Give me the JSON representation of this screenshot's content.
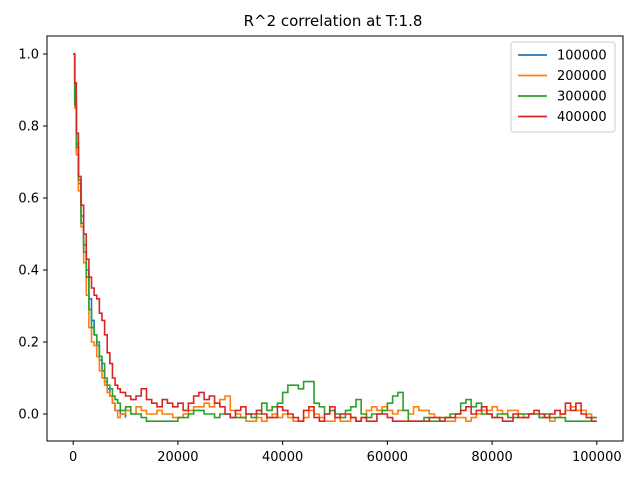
{
  "chart_data": {
    "type": "line",
    "title": "R^2 correlation at T:1.8",
    "xlabel": "",
    "ylabel": "",
    "xlim": [
      -5000,
      105000
    ],
    "ylim": [
      -0.075,
      1.05
    ],
    "xticks": [
      0,
      20000,
      40000,
      60000,
      80000,
      100000
    ],
    "xtick_labels": [
      "0",
      "20000",
      "40000",
      "60000",
      "80000",
      "100000"
    ],
    "yticks": [
      0.0,
      0.2,
      0.4,
      0.6,
      0.8,
      1.0
    ],
    "ytick_labels": [
      "0.0",
      "0.2",
      "0.4",
      "0.6",
      "0.8",
      "1.0"
    ],
    "grid": false,
    "legend_position": "top-right",
    "series": [
      {
        "name": "100000",
        "color": "#1f77b4",
        "x": [
          0,
          300,
          600,
          1000,
          1500,
          2000,
          2500,
          3000,
          3500,
          4000,
          4500,
          5000,
          5500,
          6000,
          6500,
          7000,
          7500,
          8000,
          9000,
          10000
        ],
        "y": [
          1.0,
          0.88,
          0.75,
          0.64,
          0.55,
          0.47,
          0.4,
          0.32,
          0.26,
          0.22,
          0.19,
          0.15,
          0.12,
          0.09,
          0.07,
          0.05,
          0.03,
          0.01,
          0.0,
          -0.01
        ]
      },
      {
        "name": "200000",
        "color": "#ff7f0e",
        "x": [
          0,
          300,
          600,
          1000,
          1500,
          2000,
          2500,
          3000,
          3500,
          4000,
          4500,
          5000,
          5500,
          6000,
          6500,
          7000,
          7500,
          8000,
          8500,
          9000,
          10000,
          11000,
          12000,
          13000,
          14000,
          15000,
          16000,
          17000,
          18000,
          19000,
          20000,
          21000,
          22000,
          23000,
          24000,
          25000,
          26000,
          27000,
          28000,
          29000,
          30000,
          31000,
          32000,
          33000,
          34000,
          35000,
          36000,
          37000,
          38000,
          39000,
          40000,
          41000,
          42000,
          43000,
          44000,
          45000,
          46000,
          47000,
          48000,
          49000,
          50000,
          51000,
          52000,
          53000,
          54000,
          55000,
          56000,
          57000,
          58000,
          59000,
          60000,
          61000,
          62000,
          63000,
          64000,
          65000,
          66000,
          67000,
          68000,
          69000,
          70000,
          71000,
          72000,
          73000,
          74000,
          75000,
          76000,
          77000,
          78000,
          79000,
          80000,
          81000,
          82000,
          83000,
          84000,
          85000,
          86000,
          87000,
          88000,
          89000,
          90000,
          91000,
          92000,
          93000,
          94000,
          95000,
          96000,
          97000,
          98000,
          99000,
          100000
        ],
        "y": [
          1.0,
          0.85,
          0.72,
          0.62,
          0.52,
          0.42,
          0.33,
          0.24,
          0.2,
          0.19,
          0.16,
          0.12,
          0.1,
          0.08,
          0.06,
          0.05,
          0.03,
          0.01,
          -0.01,
          0.0,
          0.01,
          0.0,
          0.02,
          0.01,
          0.0,
          0.0,
          0.01,
          0.0,
          0.0,
          -0.01,
          -0.01,
          0.0,
          0.01,
          0.02,
          0.02,
          0.03,
          0.02,
          0.03,
          0.04,
          0.05,
          0.01,
          0.0,
          -0.01,
          -0.02,
          -0.02,
          -0.01,
          -0.02,
          -0.01,
          0.0,
          -0.01,
          0.0,
          -0.01,
          -0.02,
          -0.02,
          -0.01,
          0.01,
          0.0,
          -0.01,
          -0.02,
          -0.02,
          -0.01,
          -0.02,
          -0.02,
          -0.01,
          -0.02,
          -0.01,
          0.01,
          0.02,
          0.01,
          0.02,
          0.01,
          0.0,
          0.01,
          0.01,
          0.0,
          0.02,
          0.01,
          0.01,
          0.0,
          -0.01,
          -0.02,
          -0.02,
          -0.02,
          -0.01,
          -0.01,
          -0.02,
          -0.01,
          0.0,
          0.01,
          0.01,
          0.02,
          0.01,
          0.0,
          0.01,
          0.01,
          0.0,
          -0.01,
          0.0,
          0.0,
          -0.01,
          -0.01,
          -0.02,
          -0.01,
          0.0,
          0.01,
          0.02,
          0.01,
          0.01,
          0.0,
          -0.01,
          -0.01
        ]
      },
      {
        "name": "300000",
        "color": "#2ca02c",
        "x": [
          0,
          300,
          600,
          1000,
          1500,
          2000,
          2500,
          3000,
          3500,
          4000,
          4500,
          5000,
          5500,
          6000,
          6500,
          7000,
          7500,
          8000,
          8500,
          9000,
          10000,
          11000,
          12000,
          13000,
          14000,
          15000,
          16000,
          17000,
          18000,
          19000,
          20000,
          21000,
          22000,
          23000,
          24000,
          25000,
          26000,
          27000,
          28000,
          29000,
          30000,
          31000,
          32000,
          33000,
          34000,
          35000,
          36000,
          37000,
          38000,
          39000,
          40000,
          41000,
          42000,
          43000,
          44000,
          45000,
          46000,
          47000,
          48000,
          49000,
          50000,
          51000,
          52000,
          53000,
          54000,
          55000,
          56000,
          57000,
          58000,
          59000,
          60000,
          61000,
          62000,
          63000,
          64000,
          65000,
          66000,
          67000,
          68000,
          69000,
          70000,
          71000,
          72000,
          73000,
          74000,
          75000,
          76000,
          77000,
          78000,
          79000,
          80000,
          81000,
          82000,
          83000,
          84000,
          85000,
          86000,
          87000,
          88000,
          89000,
          90000,
          91000,
          92000,
          93000,
          94000,
          95000,
          96000,
          97000,
          98000,
          99000,
          100000
        ],
        "y": [
          1.0,
          0.86,
          0.74,
          0.65,
          0.53,
          0.45,
          0.38,
          0.29,
          0.24,
          0.22,
          0.2,
          0.16,
          0.14,
          0.1,
          0.08,
          0.07,
          0.05,
          0.04,
          0.03,
          0.01,
          0.02,
          0.0,
          0.0,
          -0.01,
          -0.02,
          -0.02,
          -0.02,
          -0.02,
          -0.02,
          -0.02,
          -0.01,
          -0.01,
          0.0,
          0.01,
          0.01,
          0.0,
          0.0,
          -0.01,
          0.0,
          0.0,
          -0.01,
          -0.01,
          -0.01,
          0.0,
          -0.01,
          0.0,
          0.03,
          0.01,
          0.02,
          0.03,
          0.06,
          0.08,
          0.08,
          0.07,
          0.09,
          0.09,
          0.03,
          0.02,
          0.0,
          0.01,
          0.0,
          -0.01,
          0.01,
          0.02,
          0.04,
          0.0,
          -0.01,
          0.0,
          0.0,
          0.01,
          0.03,
          0.05,
          0.06,
          0.01,
          -0.02,
          -0.02,
          -0.02,
          -0.01,
          -0.02,
          -0.02,
          -0.01,
          -0.01,
          0.0,
          0.0,
          0.03,
          0.04,
          0.02,
          0.03,
          0.0,
          0.0,
          -0.01,
          0.0,
          0.0,
          -0.01,
          -0.01,
          0.0,
          0.0,
          0.0,
          0.0,
          -0.01,
          0.0,
          -0.01,
          -0.01,
          -0.01,
          -0.02,
          -0.02,
          -0.02,
          -0.02,
          -0.02,
          -0.01,
          -0.01
        ]
      },
      {
        "name": "400000",
        "color": "#d62728",
        "x": [
          0,
          300,
          600,
          1000,
          1500,
          2000,
          2500,
          3000,
          3500,
          4000,
          4500,
          5000,
          5500,
          6000,
          6500,
          7000,
          7500,
          8000,
          8500,
          9000,
          10000,
          11000,
          12000,
          13000,
          14000,
          15000,
          16000,
          17000,
          18000,
          19000,
          20000,
          21000,
          22000,
          23000,
          24000,
          25000,
          26000,
          27000,
          28000,
          29000,
          30000,
          31000,
          32000,
          33000,
          34000,
          35000,
          36000,
          37000,
          38000,
          39000,
          40000,
          41000,
          42000,
          43000,
          44000,
          45000,
          46000,
          47000,
          48000,
          49000,
          50000,
          51000,
          52000,
          53000,
          54000,
          55000,
          56000,
          57000,
          58000,
          59000,
          60000,
          61000,
          62000,
          63000,
          64000,
          65000,
          66000,
          67000,
          68000,
          69000,
          70000,
          71000,
          72000,
          73000,
          74000,
          75000,
          76000,
          77000,
          78000,
          79000,
          80000,
          81000,
          82000,
          83000,
          84000,
          85000,
          86000,
          87000,
          88000,
          89000,
          90000,
          91000,
          92000,
          93000,
          94000,
          95000,
          96000,
          97000,
          98000,
          99000,
          100000
        ],
        "y": [
          1.0,
          0.92,
          0.78,
          0.66,
          0.58,
          0.5,
          0.43,
          0.38,
          0.35,
          0.33,
          0.32,
          0.28,
          0.26,
          0.22,
          0.17,
          0.14,
          0.1,
          0.08,
          0.07,
          0.06,
          0.05,
          0.04,
          0.05,
          0.07,
          0.04,
          0.03,
          0.02,
          0.04,
          0.03,
          0.02,
          0.03,
          0.01,
          0.03,
          0.05,
          0.06,
          0.04,
          0.05,
          0.03,
          0.02,
          0.0,
          -0.01,
          0.01,
          0.02,
          0.0,
          0.0,
          0.01,
          0.0,
          -0.01,
          -0.01,
          0.02,
          0.01,
          0.0,
          -0.01,
          -0.02,
          0.01,
          0.02,
          -0.01,
          -0.02,
          0.0,
          0.02,
          -0.01,
          0.0,
          0.0,
          -0.01,
          -0.02,
          -0.01,
          -0.02,
          -0.02,
          0.0,
          0.0,
          -0.01,
          -0.02,
          -0.02,
          -0.02,
          -0.02,
          -0.02,
          -0.02,
          -0.02,
          -0.01,
          -0.01,
          -0.02,
          -0.01,
          -0.01,
          0.0,
          0.01,
          0.02,
          0.0,
          0.01,
          0.02,
          0.0,
          -0.01,
          -0.01,
          -0.02,
          -0.02,
          0.0,
          -0.01,
          -0.01,
          0.0,
          0.01,
          0.0,
          -0.01,
          0.0,
          0.01,
          0.0,
          0.03,
          0.01,
          0.03,
          0.0,
          -0.01,
          -0.02,
          -0.02
        ]
      }
    ]
  }
}
